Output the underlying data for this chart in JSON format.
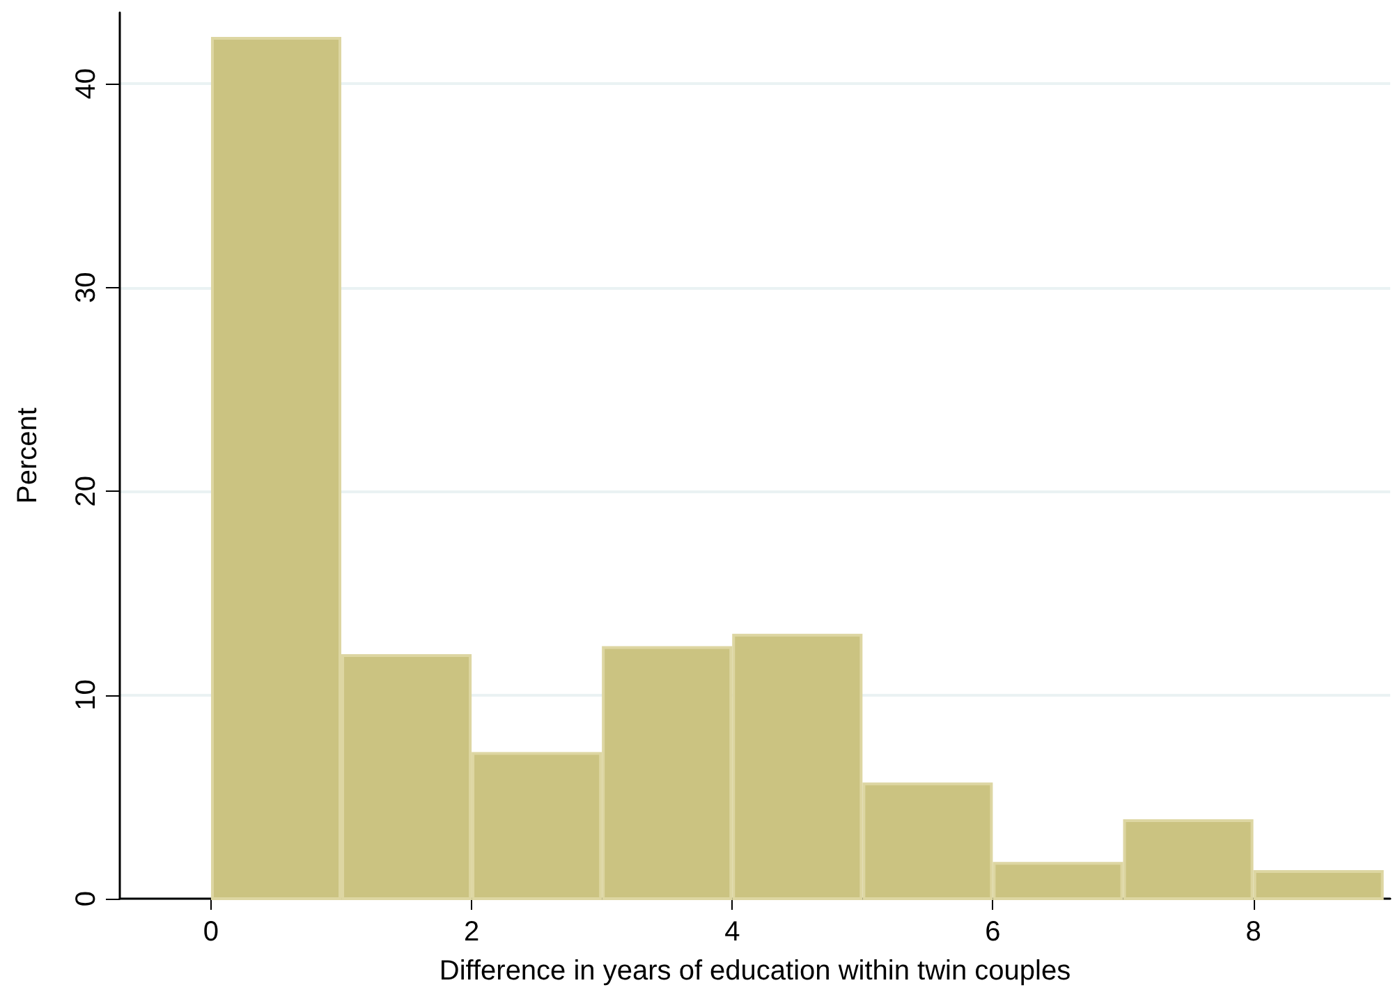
{
  "chart_data": {
    "type": "histogram",
    "xlabel": "Difference in years of education within twin couples",
    "ylabel": "Percent",
    "bins": [
      0,
      1,
      2,
      3,
      4,
      5,
      6,
      7,
      8,
      9
    ],
    "values": [
      42.3,
      12.0,
      7.2,
      12.4,
      13.0,
      5.7,
      1.8,
      3.9,
      1.4
    ],
    "color": "#cbc381",
    "xlim": [
      -0.7,
      9.05
    ],
    "xticks": [
      0,
      2,
      4,
      6,
      8
    ],
    "ylim": [
      0,
      43.5
    ],
    "yticks": [
      0,
      10,
      20,
      30,
      40
    ],
    "grid": "y"
  }
}
